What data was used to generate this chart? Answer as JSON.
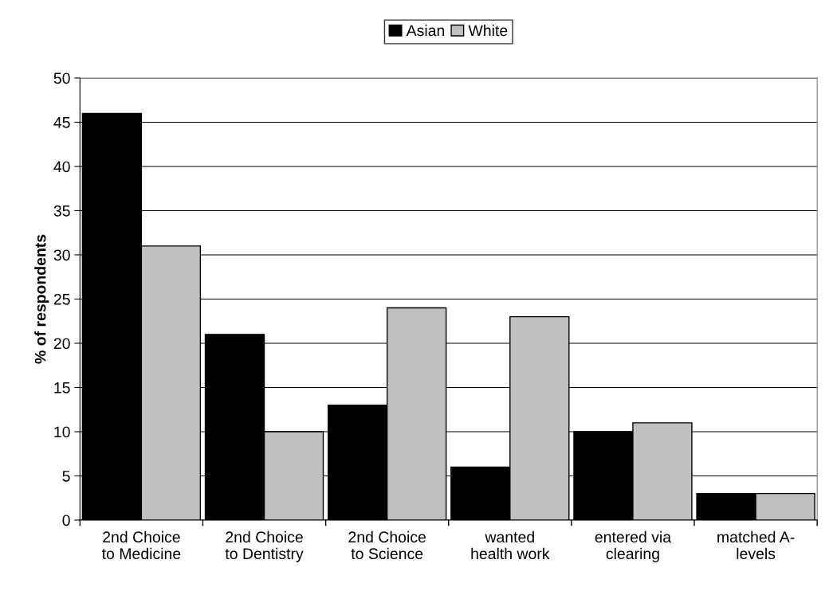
{
  "chart_data": {
    "type": "bar",
    "ylabel": "% of respondents",
    "categories": [
      "2nd Choice\nto Medicine",
      "2nd Choice\nto Dentistry",
      "2nd Choice\nto Science",
      "wanted\nhealth work",
      "entered via\nclearing",
      "matched A-\nlevels"
    ],
    "series": [
      {
        "name": "Asian",
        "color": "#000000",
        "values": [
          46,
          21,
          13,
          6,
          10,
          3
        ]
      },
      {
        "name": "White",
        "color": "#c0c0c0",
        "values": [
          31,
          10,
          24,
          23,
          11,
          3
        ]
      }
    ],
    "ylim": [
      0,
      50
    ],
    "yticks": [
      0,
      5,
      10,
      15,
      20,
      25,
      30,
      35,
      40,
      45,
      50
    ],
    "grid": "y",
    "legend": "top"
  }
}
